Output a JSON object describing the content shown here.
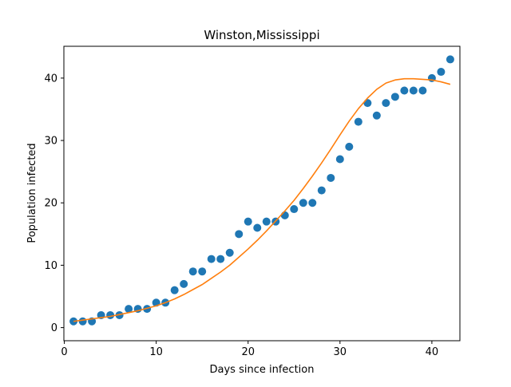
{
  "chart_data": {
    "type": "scatter",
    "title": "Winston,Mississippi",
    "xlabel": "Days since infection",
    "ylabel": "Population infected",
    "xlim": [
      -0.05,
      43.05
    ],
    "ylim": [
      -2.1,
      45.1
    ],
    "x_ticks": [
      0,
      10,
      20,
      30,
      40
    ],
    "y_ticks": [
      0,
      10,
      20,
      30,
      40
    ],
    "grid": false,
    "legend": "none",
    "series": [
      {
        "kind": "scatter",
        "color": "#1f77b4",
        "x": [
          1,
          2,
          3,
          4,
          5,
          6,
          7,
          8,
          9,
          10,
          11,
          12,
          13,
          14,
          15,
          16,
          17,
          18,
          19,
          20,
          21,
          22,
          23,
          24,
          25,
          26,
          27,
          28,
          29,
          30,
          31,
          32,
          33,
          34,
          35,
          36,
          37,
          38,
          39,
          40,
          41,
          42
        ],
        "y": [
          1,
          1,
          1,
          2,
          2,
          2,
          3,
          3,
          3,
          4,
          4,
          6,
          7,
          9,
          9,
          11,
          11,
          12,
          15,
          17,
          16,
          17,
          17,
          18,
          19,
          20,
          20,
          22,
          24,
          27,
          29,
          33,
          36,
          34,
          36,
          37,
          38,
          38,
          38,
          40,
          41,
          43
        ]
      },
      {
        "kind": "line",
        "color": "#ff7f0e",
        "x": [
          1,
          2,
          3,
          4,
          5,
          6,
          7,
          8,
          9,
          10,
          11,
          12,
          13,
          14,
          15,
          16,
          17,
          18,
          19,
          20,
          21,
          22,
          23,
          24,
          25,
          26,
          27,
          28,
          29,
          30,
          31,
          32,
          33,
          34,
          35,
          36,
          37,
          38,
          39,
          40,
          41,
          42
        ],
        "y": [
          1.0,
          1.2,
          1.4,
          1.6,
          1.8,
          2.1,
          2.4,
          2.7,
          3.1,
          3.5,
          4.0,
          4.6,
          5.3,
          6.1,
          6.9,
          7.9,
          8.9,
          10.0,
          11.3,
          12.6,
          14.0,
          15.5,
          17.1,
          18.7,
          20.4,
          22.3,
          24.3,
          26.4,
          28.6,
          30.9,
          33.1,
          35.1,
          36.8,
          38.2,
          39.2,
          39.7,
          39.9,
          39.9,
          39.8,
          39.7,
          39.4,
          39.0
        ]
      }
    ]
  }
}
